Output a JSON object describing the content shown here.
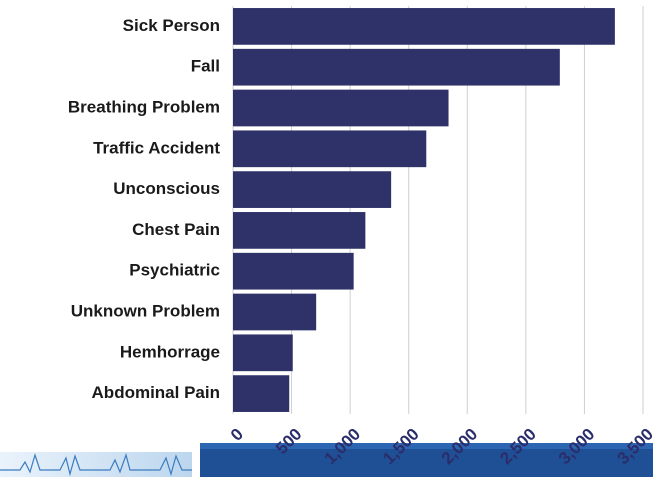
{
  "chart_data": {
    "type": "bar",
    "orientation": "horizontal",
    "categories": [
      "Sick Person",
      "Fall",
      "Breathing Problem",
      "Traffic Accident",
      "Unconscious",
      "Chest Pain",
      "Psychiatric",
      "Unknown Problem",
      "Hemhorrage",
      "Abdominal Pain"
    ],
    "values": [
      3260,
      2790,
      1840,
      1650,
      1350,
      1130,
      1030,
      710,
      510,
      480
    ],
    "color": "#2f3268",
    "xlim": [
      0,
      3500
    ],
    "xticks": [
      0,
      500,
      {
        "value": 1000,
        "label": "1,000"
      },
      {
        "value": 1500,
        "label": "1,500"
      },
      {
        "value": 2000,
        "label": "2,000"
      },
      {
        "value": 2500,
        "label": "2,500"
      },
      {
        "value": 3000,
        "label": "3,000"
      },
      {
        "value": 3500,
        "label": "3,500"
      }
    ],
    "grid": true
  }
}
